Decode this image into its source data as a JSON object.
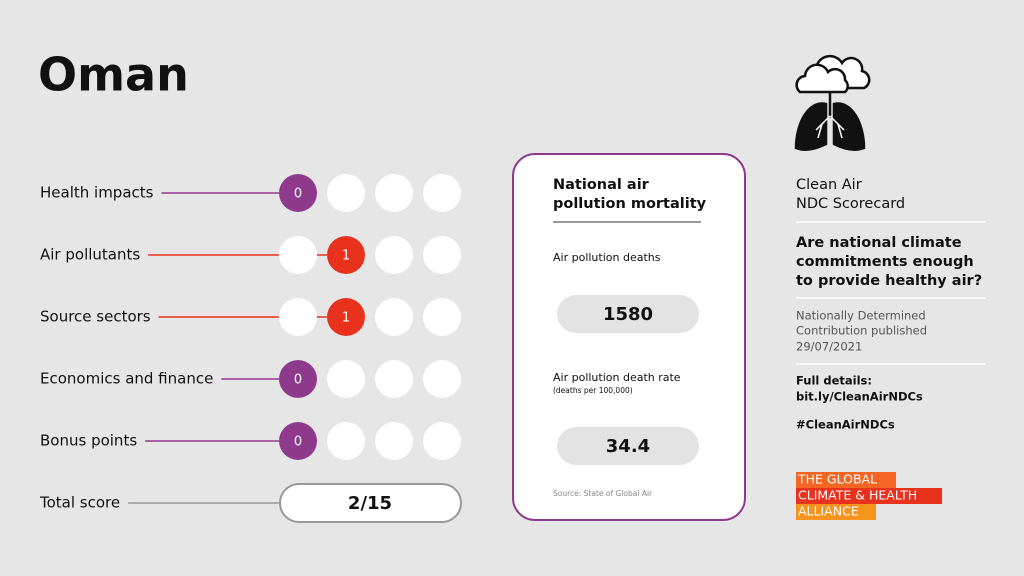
{
  "header": {
    "title": "Oman"
  },
  "scores": {
    "rows": [
      {
        "label": "Health impacts",
        "score": 0,
        "color": "#8e3a8c"
      },
      {
        "label": "Air pollutants",
        "score": 1,
        "color": "#e8321e"
      },
      {
        "label": "Source sectors",
        "score": 1,
        "color": "#e8321e"
      },
      {
        "label": "Economics and finance",
        "score": 0,
        "color": "#8e3a8c"
      },
      {
        "label": "Bonus points",
        "score": 0,
        "color": "#8e3a8c"
      }
    ],
    "total_label": "Total score",
    "total": "2/15"
  },
  "card": {
    "title_lines": [
      "National air",
      "pollution mortality"
    ],
    "deaths_label": "Air pollution deaths",
    "deaths": 1580,
    "rate_label": "Air pollution death rate",
    "rate_unit": "(deaths per 100,000)",
    "rate": 34.4,
    "source": "Source: State of Global Air"
  },
  "sidebar": {
    "title_lines": [
      "Clean Air",
      "NDC Scorecard"
    ],
    "question_lines": [
      "Are national climate",
      "commitments enough",
      "to provide healthy air?"
    ],
    "ndc_lines": [
      "Nationally Determined",
      "Contribution published",
      "29/07/2021"
    ],
    "details_lines": [
      "Full details:",
      "bit.ly/CleanAirNDCs"
    ],
    "hashtag": "#CleanAirNDCs",
    "logo_lines": [
      "THE GLOBAL",
      "CLIMATE & HEALTH",
      "ALLIANCE"
    ]
  }
}
